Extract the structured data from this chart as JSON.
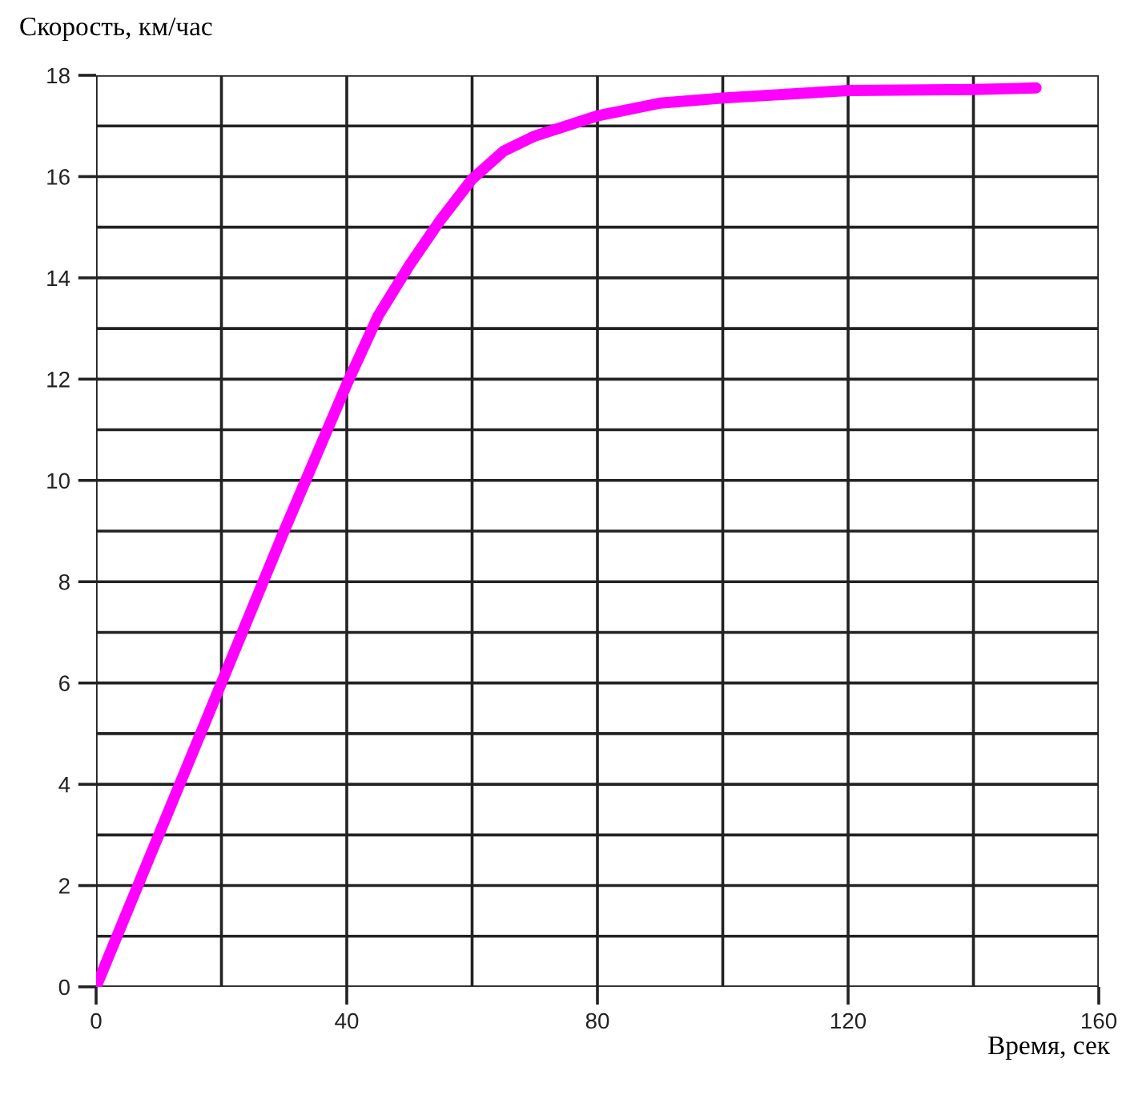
{
  "chart_data": {
    "type": "line",
    "ylabel": "Скорость, км/час",
    "xlabel": "Время, сек",
    "series": [
      {
        "color": "#ff00ff",
        "x": [
          0,
          10,
          20,
          30,
          40,
          45,
          50,
          55,
          60,
          65,
          70,
          80,
          90,
          100,
          120,
          140,
          150
        ],
        "values": [
          0,
          3,
          6,
          9,
          11.9,
          13.25,
          14.25,
          15.15,
          15.95,
          16.5,
          16.8,
          17.2,
          17.45,
          17.55,
          17.7,
          17.72,
          17.75
        ]
      }
    ],
    "xlim": [
      0,
      160
    ],
    "xticks": [
      0,
      40,
      80,
      120,
      160
    ],
    "ylim": [
      0,
      18
    ],
    "yticks": [
      0,
      2,
      4,
      6,
      8,
      10,
      12,
      14,
      16,
      18
    ],
    "grid": true,
    "marker": "none",
    "line_style": "solid"
  }
}
